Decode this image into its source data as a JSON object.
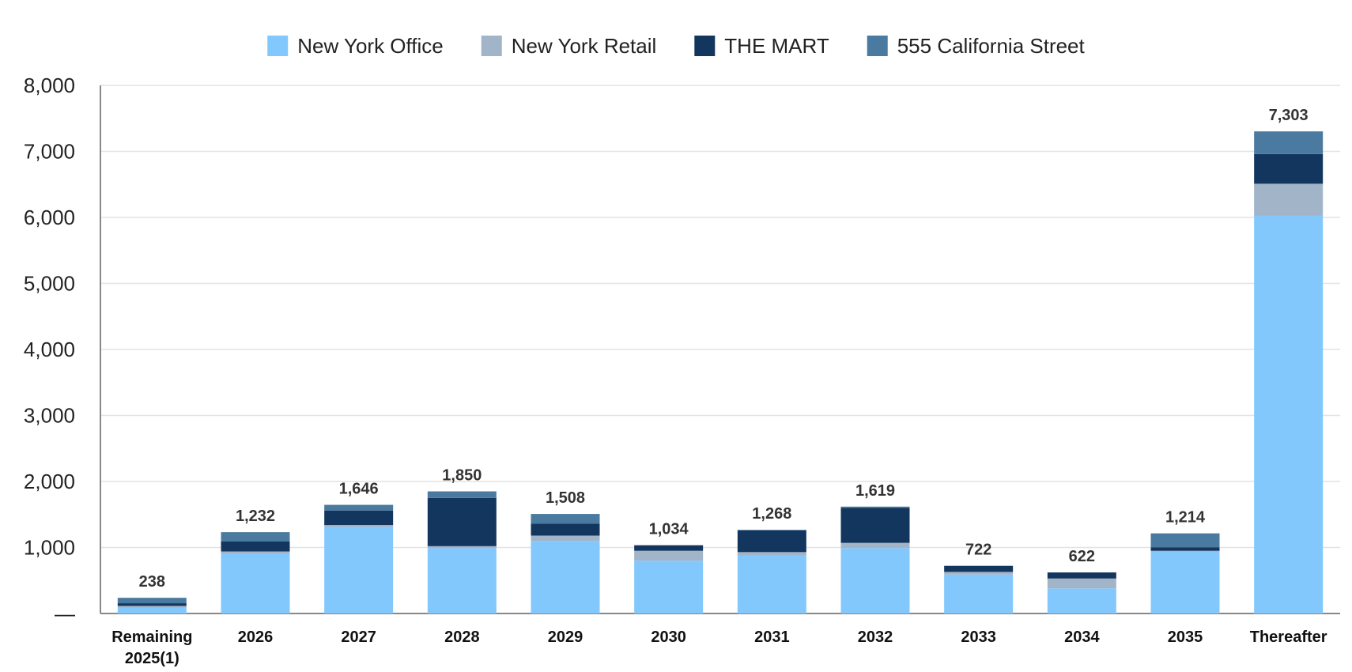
{
  "chart_data": {
    "type": "bar",
    "stacked": true,
    "categories": [
      "Remaining 2025(1)",
      "2026",
      "2027",
      "2028",
      "2029",
      "2030",
      "2031",
      "2032",
      "2033",
      "2034",
      "2035",
      "Thereafter"
    ],
    "category_lines": [
      [
        "Remaining",
        "2025(1)"
      ],
      [
        "2026"
      ],
      [
        "2027"
      ],
      [
        "2028"
      ],
      [
        "2029"
      ],
      [
        "2030"
      ],
      [
        "2031"
      ],
      [
        "2032"
      ],
      [
        "2033"
      ],
      [
        "2034"
      ],
      [
        "2035"
      ],
      [
        "Thereafter"
      ]
    ],
    "series": [
      {
        "name": "New York Office",
        "color": "#82C8FC",
        "values": [
          90,
          910,
          1310,
          990,
          1100,
          800,
          880,
          990,
          590,
          380,
          940,
          6030
        ]
      },
      {
        "name": "New York Retail",
        "color": "#A1B4C8",
        "values": [
          25,
          30,
          30,
          30,
          80,
          150,
          50,
          80,
          40,
          150,
          10,
          480
        ]
      },
      {
        "name": "THE MART",
        "color": "#13365E",
        "values": [
          40,
          150,
          220,
          730,
          180,
          84,
          330,
          530,
          92,
          92,
          50,
          450
        ]
      },
      {
        "name": "555 California Street",
        "color": "#4A7AA0",
        "values": [
          83,
          142,
          86,
          100,
          148,
          0,
          8,
          19,
          0,
          0,
          214,
          343
        ]
      }
    ],
    "totals": [
      "238",
      "1,232",
      "1,646",
      "1,850",
      "1,508",
      "1,034",
      "1,268",
      "1,619",
      "722",
      "622",
      "1,214",
      "7,303"
    ],
    "y_ticks": [
      "—",
      "1,000",
      "2,000",
      "3,000",
      "4,000",
      "5,000",
      "6,000",
      "7,000",
      "8,000"
    ],
    "ylim": [
      0,
      8000
    ],
    "grid": true,
    "legend_position": "top-center",
    "title": "",
    "xlabel": "",
    "ylabel": ""
  }
}
